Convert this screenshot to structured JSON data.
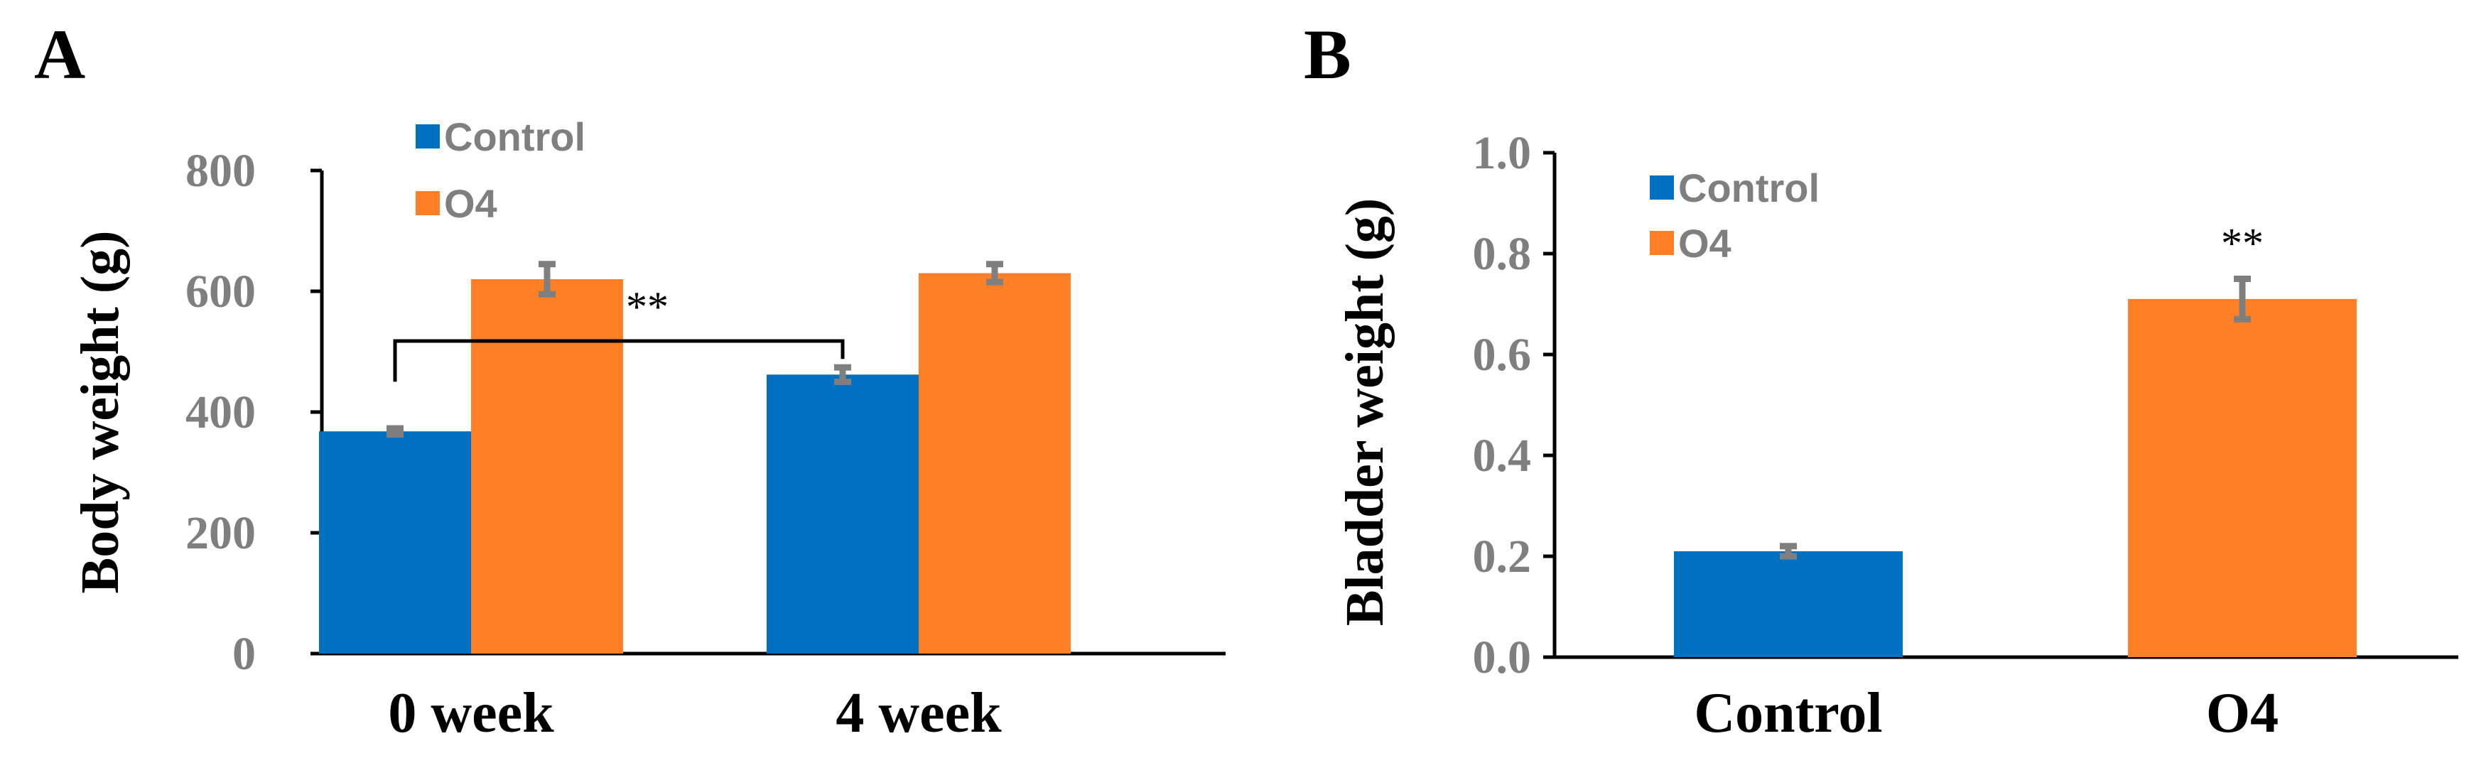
{
  "chart_data": [
    {
      "panel": "A",
      "type": "bar",
      "title": "",
      "xlabel": "",
      "ylabel": "Body weight (g)",
      "ylim": [
        0,
        800
      ],
      "yticks": [
        0,
        200,
        400,
        600,
        800
      ],
      "ytick_labels": [
        "0",
        "200",
        "400",
        "600",
        "800"
      ],
      "categories": [
        "0 week",
        "4 week"
      ],
      "series": [
        {
          "name": "Control",
          "color": "#0070c0",
          "values": [
            368,
            462
          ],
          "errors": [
            5,
            12
          ]
        },
        {
          "name": "O4",
          "color": "#ff7f27",
          "values": [
            620,
            630
          ],
          "errors": [
            25,
            15
          ]
        }
      ],
      "legend_position": "top-left",
      "annotations": [
        {
          "text": "**",
          "type": "bracket",
          "from": "Control @ 0 week",
          "to": "Control @ 4 week"
        }
      ]
    },
    {
      "panel": "B",
      "type": "bar",
      "title": "",
      "xlabel": "",
      "ylabel": "Bladder weight (g)",
      "ylim": [
        0,
        1.0
      ],
      "yticks": [
        0,
        0.2,
        0.4,
        0.6,
        0.8,
        1.0
      ],
      "ytick_labels": [
        "0.0",
        "0.2",
        "0.4",
        "0.6",
        "0.8",
        "1.0"
      ],
      "categories": [
        "Control",
        "O4"
      ],
      "series": [
        {
          "name": "Control",
          "color": "#0070c0",
          "values": [
            0.21,
            null
          ],
          "errors": [
            0.01,
            null
          ]
        },
        {
          "name": "O4",
          "color": "#ff7f27",
          "values": [
            null,
            0.71
          ],
          "errors": [
            null,
            0.04
          ]
        }
      ],
      "legend_position": "top-left",
      "annotations": [
        {
          "text": "**",
          "type": "label",
          "target": "O4"
        }
      ]
    }
  ]
}
